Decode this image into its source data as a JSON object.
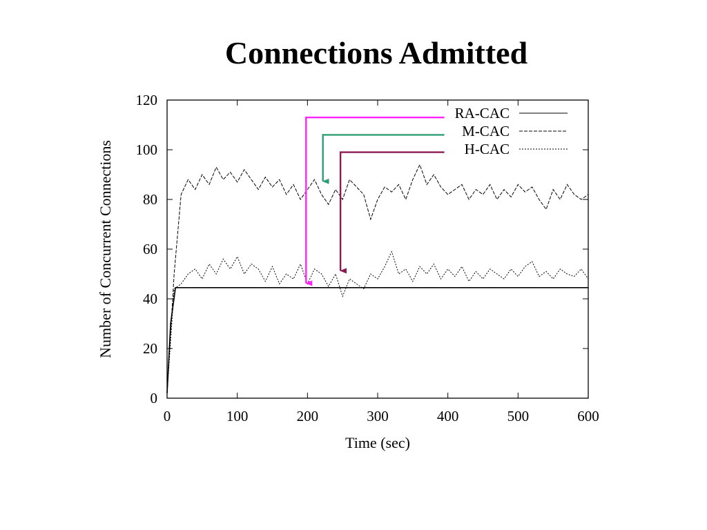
{
  "slide": {
    "title": "Connections Admitted"
  },
  "chart_data": {
    "type": "line",
    "title": "",
    "xlabel": "Time (sec)",
    "ylabel": "Number of Concurrent Connections",
    "xlim": [
      0,
      600
    ],
    "ylim": [
      0,
      120
    ],
    "xticks": [
      "0",
      "100",
      "200",
      "300",
      "400",
      "500",
      "600"
    ],
    "yticks": [
      "0",
      "20",
      "40",
      "60",
      "80",
      "100",
      "120"
    ],
    "grid": false,
    "legend_position": "top-right",
    "series": [
      {
        "name": "RA-CAC",
        "style": "solid",
        "x": [
          0,
          5,
          12,
          50,
          100,
          150,
          200,
          250,
          300,
          350,
          400,
          450,
          500,
          550,
          600
        ],
        "values": [
          2,
          30,
          44.5,
          44.5,
          44.5,
          44.5,
          44.5,
          44.5,
          44.5,
          44.5,
          44.5,
          44.5,
          44.5,
          44.5,
          44.5
        ]
      },
      {
        "name": "M-CAC",
        "style": "dashed",
        "x": [
          0,
          10,
          20,
          30,
          40,
          50,
          60,
          70,
          80,
          90,
          100,
          110,
          120,
          130,
          140,
          150,
          160,
          170,
          180,
          190,
          200,
          210,
          220,
          230,
          240,
          250,
          260,
          270,
          280,
          290,
          300,
          310,
          320,
          330,
          340,
          350,
          360,
          370,
          380,
          390,
          400,
          410,
          420,
          430,
          440,
          450,
          460,
          470,
          480,
          490,
          500,
          510,
          520,
          530,
          540,
          550,
          560,
          570,
          580,
          590,
          600
        ],
        "values": [
          2,
          50,
          82,
          88,
          84,
          90,
          86,
          93,
          88,
          91,
          87,
          92,
          88,
          84,
          89,
          85,
          88,
          82,
          86,
          80,
          84,
          88,
          82,
          78,
          84,
          80,
          88,
          85,
          82,
          72,
          80,
          85,
          83,
          86,
          80,
          88,
          94,
          86,
          90,
          85,
          82,
          84,
          86,
          80,
          84,
          82,
          86,
          80,
          84,
          81,
          86,
          83,
          85,
          80,
          76,
          84,
          80,
          86,
          82,
          80,
          82
        ]
      },
      {
        "name": "H-CAC",
        "style": "dotted",
        "x": [
          0,
          10,
          20,
          30,
          40,
          50,
          60,
          70,
          80,
          90,
          100,
          110,
          120,
          130,
          140,
          150,
          160,
          170,
          180,
          190,
          200,
          210,
          220,
          230,
          240,
          250,
          260,
          270,
          280,
          290,
          300,
          310,
          320,
          330,
          340,
          350,
          360,
          370,
          380,
          390,
          400,
          410,
          420,
          430,
          440,
          450,
          460,
          470,
          480,
          490,
          500,
          510,
          520,
          530,
          540,
          550,
          560,
          570,
          580,
          590,
          600
        ],
        "values": [
          2,
          44,
          46,
          50,
          52,
          48,
          54,
          50,
          56,
          52,
          57,
          50,
          54,
          52,
          47,
          53,
          46,
          50,
          48,
          54,
          46,
          52,
          50,
          45,
          50,
          41,
          48,
          46,
          44,
          50,
          48,
          53,
          59,
          50,
          52,
          47,
          53,
          50,
          54,
          48,
          52,
          49,
          53,
          47,
          51,
          48,
          52,
          50,
          48,
          52,
          49,
          53,
          55,
          49,
          51,
          48,
          52,
          50,
          49,
          52,
          48
        ]
      }
    ],
    "annotations": [
      {
        "series": "RA-CAC",
        "color": "#ff22ff",
        "label_x": 395,
        "corner_x": 198,
        "label_y": 113,
        "tip_y": 46
      },
      {
        "series": "M-CAC",
        "color": "#2e9d73",
        "label_x": 395,
        "corner_x": 222,
        "label_y": 106,
        "tip_y": 87
      },
      {
        "series": "H-CAC",
        "color": "#8b1a54",
        "label_x": 395,
        "corner_x": 247,
        "label_y": 99,
        "tip_y": 51
      }
    ]
  }
}
